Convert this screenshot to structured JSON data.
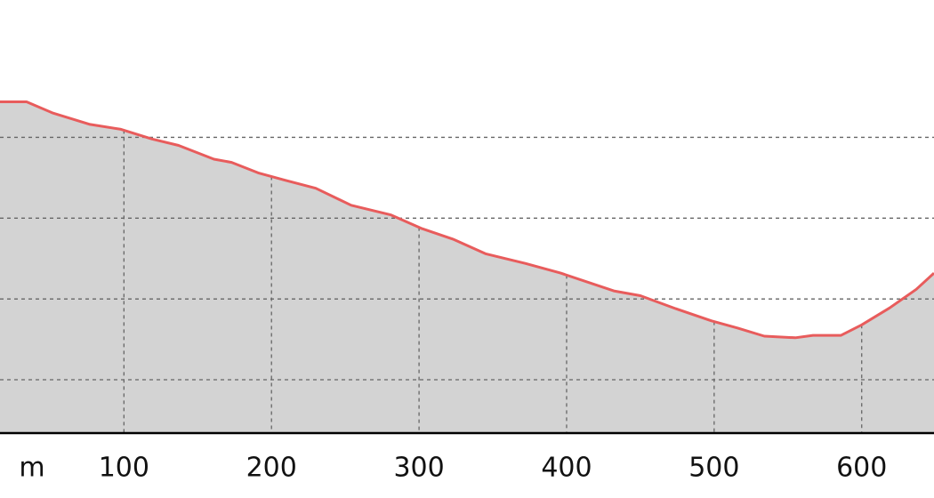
{
  "chart_data": {
    "type": "area",
    "xlabel": "m",
    "x": [
      16,
      34,
      52,
      77,
      98,
      119,
      137,
      161,
      173,
      191,
      209,
      230,
      254,
      281,
      302,
      323,
      345,
      372,
      396,
      432,
      450,
      474,
      498,
      516,
      534,
      555,
      567,
      586,
      600,
      619,
      637,
      649
    ],
    "values": [
      44.4,
      44.4,
      43.0,
      41.6,
      41.0,
      39.8,
      39.0,
      37.3,
      36.9,
      35.6,
      34.7,
      33.7,
      31.6,
      30.4,
      28.7,
      27.4,
      25.6,
      24.4,
      23.2,
      21.0,
      20.4,
      18.8,
      17.3,
      16.4,
      15.4,
      15.2,
      15.5,
      15.5,
      16.8,
      18.9,
      21.2,
      23.2
    ],
    "color": "#e85c5c",
    "fill": "#d3d3d3",
    "xlim": [
      16,
      649
    ],
    "xticks": [
      100,
      200,
      300,
      400,
      500,
      600
    ],
    "ylim": [
      3.4,
      57
    ],
    "yticks": [
      10,
      20,
      30,
      40
    ],
    "grid": true
  }
}
